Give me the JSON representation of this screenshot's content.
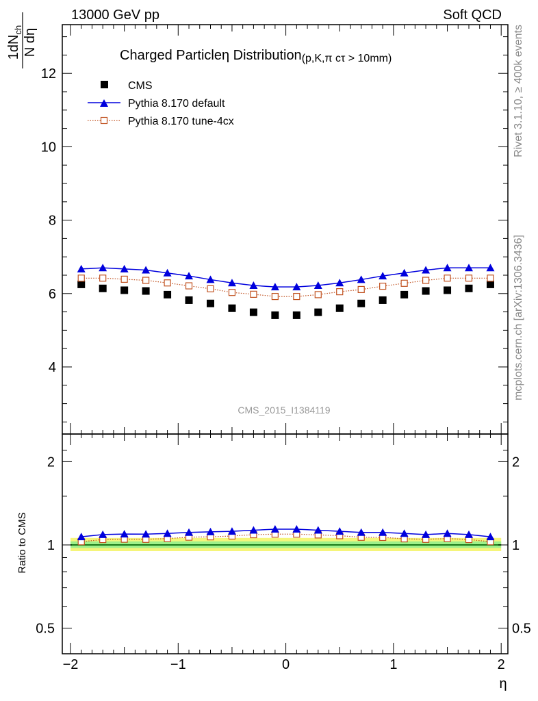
{
  "header": {
    "left": "13000 GeV pp",
    "right": "Soft QCD"
  },
  "side_text": {
    "rivet": "Rivet 3.1.10, ≥ 400k events",
    "mcplots": "mcplots.cern.ch [arXiv:1306.3436]"
  },
  "watermark": "CMS_2015_I1384119",
  "colors": {
    "cms": "#000000",
    "default": "#0000dd",
    "tune": "#c0501e",
    "band_outer": "#f5f57a",
    "band_inner": "#9ef08a",
    "ref_line": "#1a7a1a"
  },
  "chart_data": [
    {
      "type": "scatter",
      "panel": "main",
      "title": "Charged Particleη Distribution",
      "title_suffix": "(p,K,π cτ > 10mm)",
      "ylabel_top": "1dN",
      "ylabel_sub": "ch",
      "ylabel_bottom": "N dη",
      "ylim": [
        2.3,
        13.8
      ],
      "yticks": [
        4,
        6,
        8,
        10,
        12
      ],
      "xlim": [
        -2.1,
        2.1
      ],
      "legend": "top-left",
      "x": [
        -1.9,
        -1.7,
        -1.5,
        -1.3,
        -1.1,
        -0.9,
        -0.7,
        -0.5,
        -0.3,
        -0.1,
        0.1,
        0.3,
        0.5,
        0.7,
        0.9,
        1.1,
        1.3,
        1.5,
        1.7,
        1.9
      ],
      "series": [
        {
          "name": "CMS",
          "marker": "square-filled",
          "values": [
            6.25,
            6.14,
            6.09,
            6.07,
            5.97,
            5.82,
            5.73,
            5.6,
            5.49,
            5.41,
            5.41,
            5.49,
            5.6,
            5.73,
            5.82,
            5.97,
            6.07,
            6.09,
            6.14,
            6.25
          ]
        },
        {
          "name": "Pythia 8.170 default",
          "marker": "triangle-filled",
          "line": "solid",
          "values": [
            6.67,
            6.7,
            6.67,
            6.64,
            6.56,
            6.48,
            6.38,
            6.29,
            6.22,
            6.18,
            6.18,
            6.22,
            6.29,
            6.38,
            6.48,
            6.56,
            6.64,
            6.7,
            6.7,
            6.7
          ]
        },
        {
          "name": "Pythia 8.170 tune-4cx",
          "marker": "square-open",
          "line": "dotted",
          "values": [
            6.42,
            6.42,
            6.39,
            6.36,
            6.29,
            6.21,
            6.13,
            6.03,
            5.98,
            5.92,
            5.92,
            5.97,
            6.05,
            6.11,
            6.2,
            6.28,
            6.36,
            6.42,
            6.42,
            6.42
          ]
        }
      ]
    },
    {
      "type": "scatter",
      "panel": "ratio",
      "ylabel": "Ratio to CMS",
      "xlabel": "η",
      "ylim": [
        0.38,
        2.25
      ],
      "yticks": [
        0.5,
        1,
        2
      ],
      "ytick_labels": [
        "0.5",
        "1",
        "2"
      ],
      "xlim": [
        -2.1,
        2.1
      ],
      "xticks": [
        -2,
        -1,
        0,
        1,
        2
      ],
      "xtick_labels": [
        "−2",
        "−1",
        "0",
        "1",
        "2"
      ],
      "x": [
        -1.9,
        -1.7,
        -1.5,
        -1.3,
        -1.1,
        -0.9,
        -0.7,
        -0.5,
        -0.3,
        -0.1,
        0.1,
        0.3,
        0.5,
        0.7,
        0.9,
        1.1,
        1.3,
        1.5,
        1.7,
        1.9
      ],
      "band_outer": [
        0.95,
        1.06
      ],
      "band_inner": [
        0.975,
        1.03
      ],
      "series": [
        {
          "name": "Pythia 8.170 default",
          "values": [
            1.07,
            1.09,
            1.095,
            1.094,
            1.1,
            1.11,
            1.115,
            1.12,
            1.13,
            1.14,
            1.14,
            1.13,
            1.12,
            1.11,
            1.11,
            1.1,
            1.09,
            1.1,
            1.09,
            1.07
          ]
        },
        {
          "name": "Pythia 8.170 tune-4cx",
          "values": [
            1.027,
            1.046,
            1.049,
            1.048,
            1.054,
            1.067,
            1.07,
            1.077,
            1.089,
            1.094,
            1.094,
            1.087,
            1.08,
            1.066,
            1.065,
            1.052,
            1.048,
            1.054,
            1.046,
            1.027
          ]
        }
      ]
    }
  ]
}
